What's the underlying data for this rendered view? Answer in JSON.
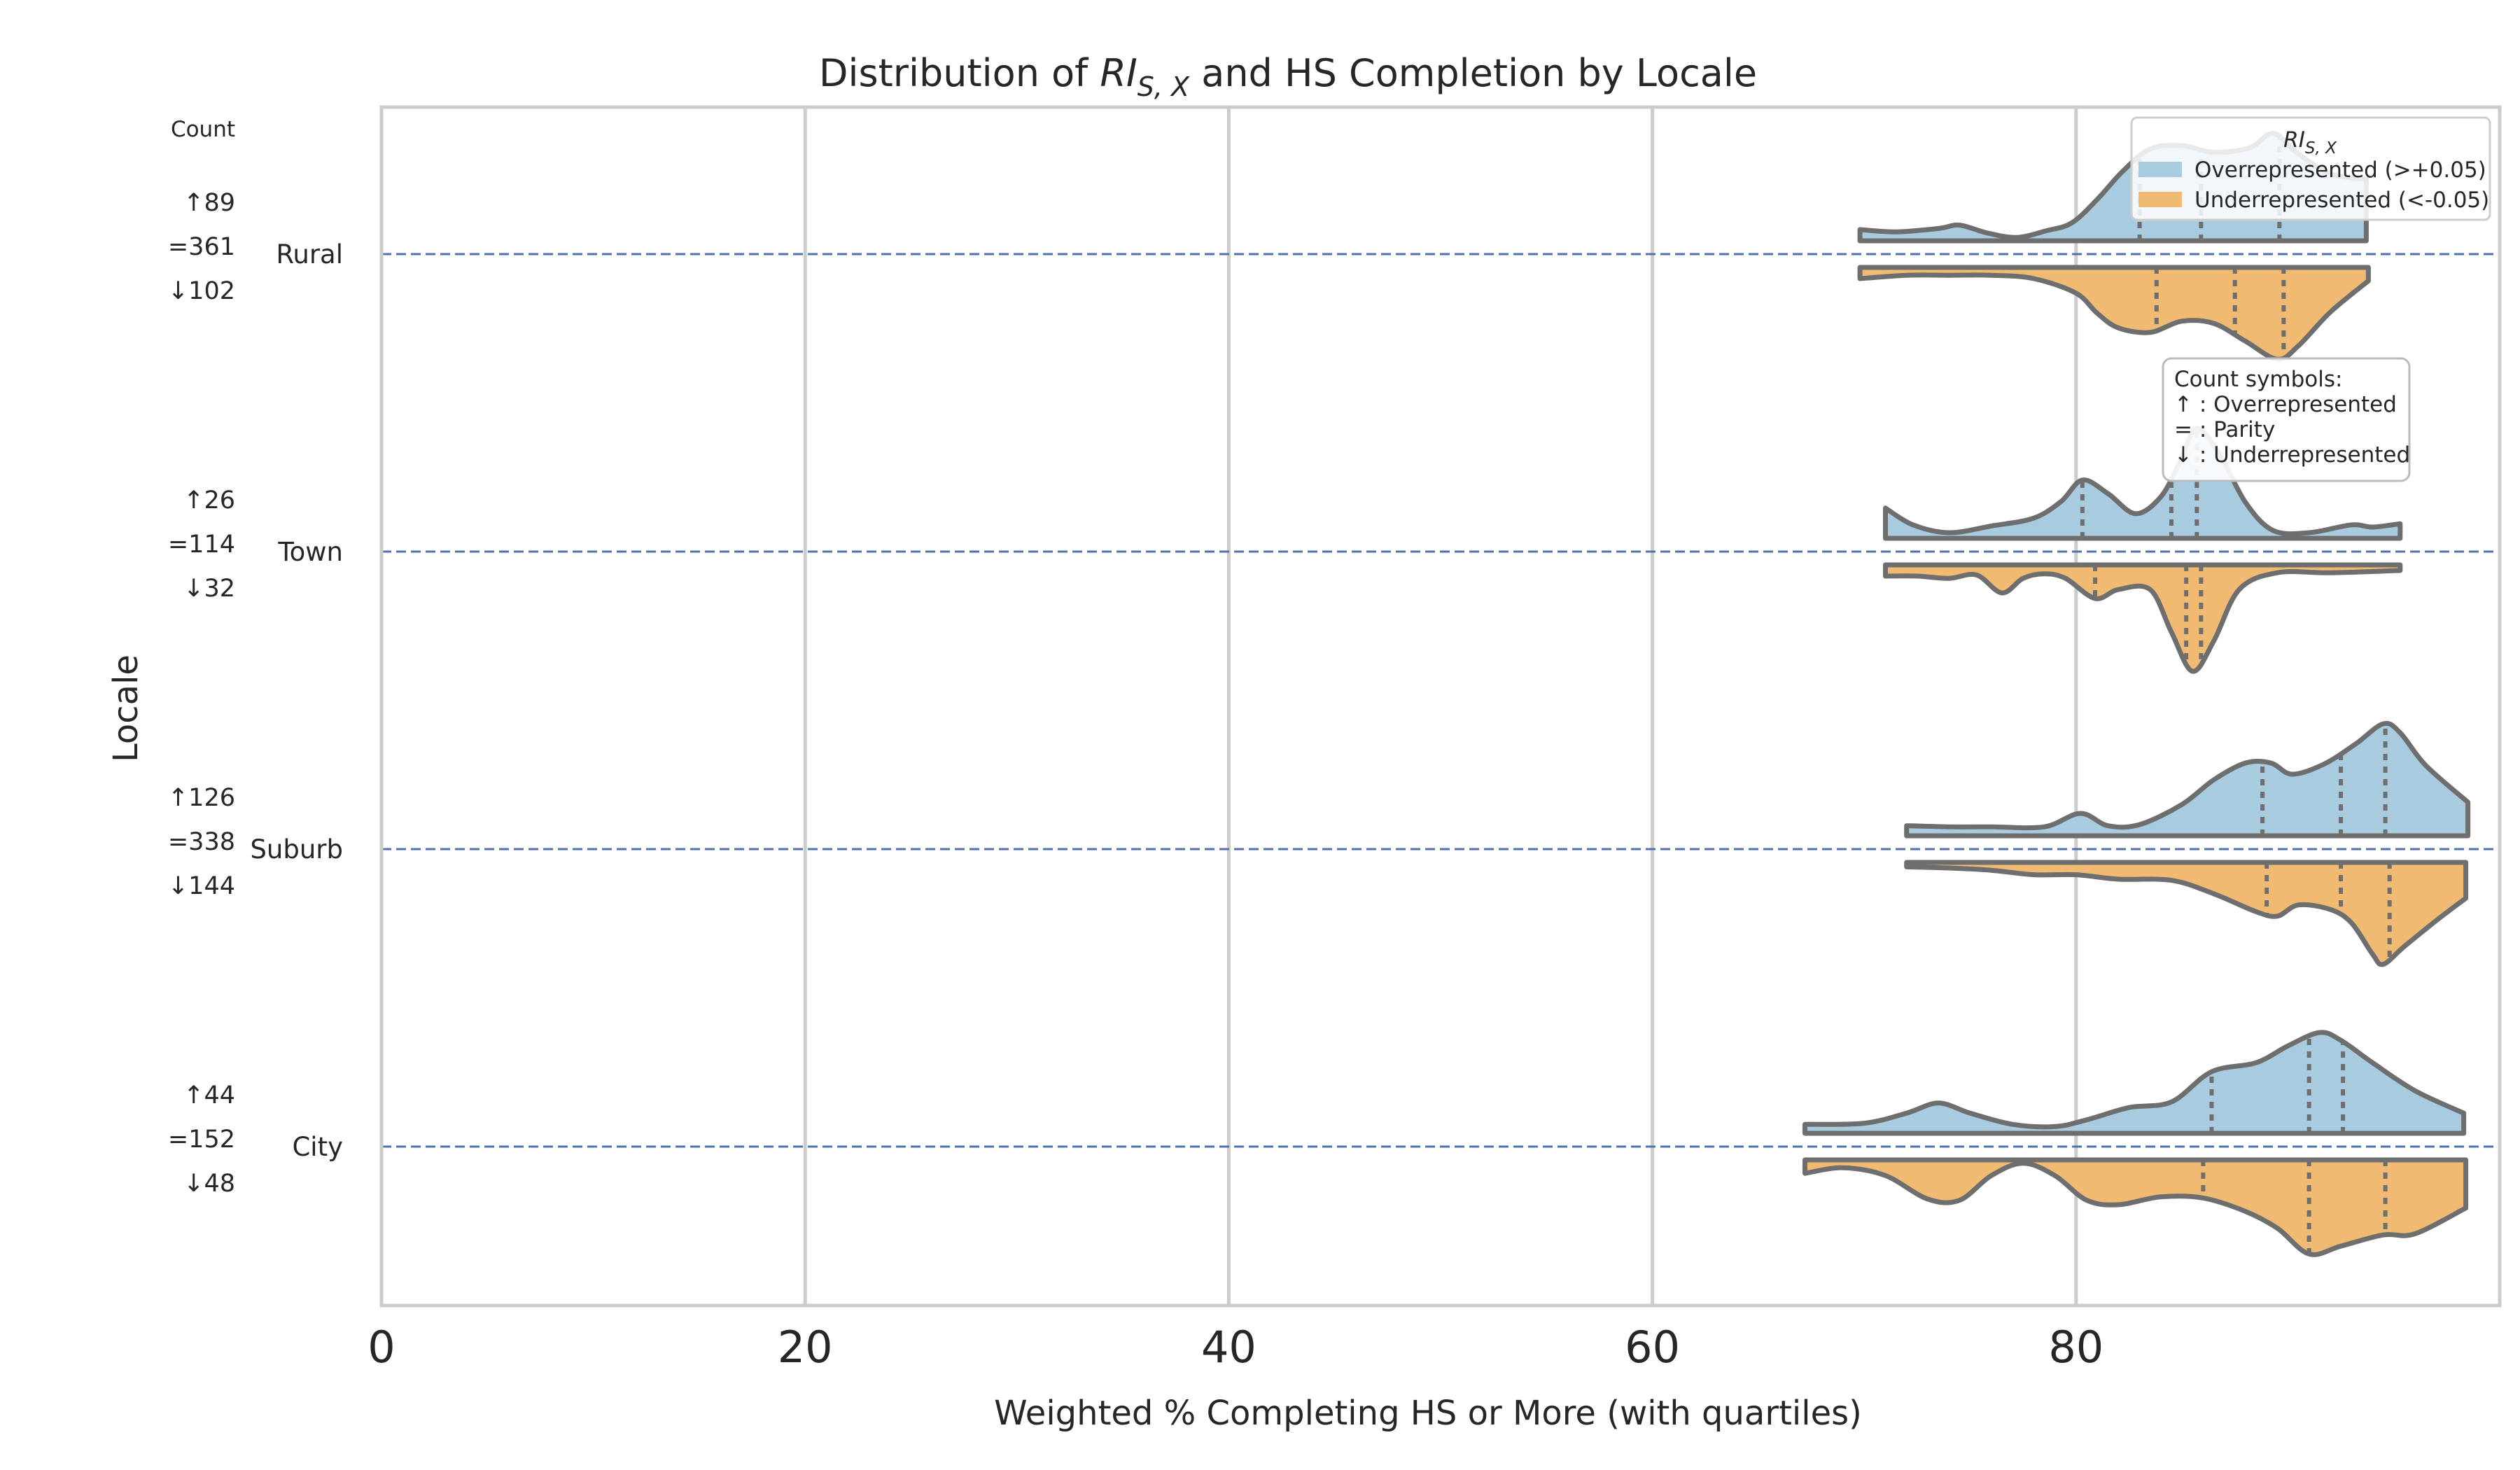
{
  "chart_data": {
    "type": "violin",
    "title_prefix": "Distribution of ",
    "title_math_main": "RI",
    "title_math_sub": "S, X",
    "title_suffix": " and HS Completion by Locale",
    "xlabel": "Weighted % Completing HS or More (with quartiles)",
    "ylabel": "Locale",
    "xlim": [
      0,
      100
    ],
    "xticks": [
      0,
      20,
      40,
      60,
      80
    ],
    "grid": "vertical",
    "count_header": "Count",
    "legend": {
      "placement": "top-right",
      "title_main": "RI",
      "title_sub": "S, X",
      "entries": [
        {
          "name": "Overrepresented (>+0.05)",
          "color": "#a9cbe0"
        },
        {
          "name": "Underrepresented (<-0.05)",
          "color": "#f0ba72"
        }
      ]
    },
    "symbol_box": {
      "lines": [
        "Count symbols:",
        "↑ : Overrepresented",
        "= : Parity",
        "↓ : Underrepresented"
      ]
    },
    "series_colors": {
      "over": "#a9cbe0",
      "under": "#f0ba72",
      "outline": "#6e6e6e",
      "ref_line": "#4c72b0"
    },
    "categories": [
      {
        "name": "Rural",
        "count_over": "↑89",
        "count_parity": "=361",
        "count_under": "↓102",
        "over": {
          "min": 69.8,
          "max": 93.7,
          "q1": 83.0,
          "median": 85.9,
          "q3": 89.6,
          "density": [
            [
              69.8,
              0.1
            ],
            [
              71.5,
              0.08
            ],
            [
              73.5,
              0.11
            ],
            [
              74.5,
              0.14
            ],
            [
              75.8,
              0.07
            ],
            [
              77.2,
              0.03
            ],
            [
              78.6,
              0.09
            ],
            [
              79.8,
              0.16
            ],
            [
              81,
              0.37
            ],
            [
              82.2,
              0.62
            ],
            [
              83.5,
              0.82
            ],
            [
              85,
              0.85
            ],
            [
              86.5,
              0.79
            ],
            [
              88.2,
              0.83
            ],
            [
              89.3,
              0.96
            ],
            [
              90.4,
              0.79
            ],
            [
              92,
              0.6
            ],
            [
              93.7,
              0.55
            ]
          ]
        },
        "under": {
          "min": 69.8,
          "max": 93.8,
          "q1": 83.8,
          "median": 87.5,
          "q3": 89.8,
          "density": [
            [
              69.8,
              0.1
            ],
            [
              72,
              0.07
            ],
            [
              74,
              0.07
            ],
            [
              76,
              0.07
            ],
            [
              78,
              0.1
            ],
            [
              80,
              0.23
            ],
            [
              81,
              0.41
            ],
            [
              82,
              0.54
            ],
            [
              83.5,
              0.58
            ],
            [
              85,
              0.48
            ],
            [
              86.5,
              0.5
            ],
            [
              88,
              0.66
            ],
            [
              89.5,
              0.82
            ],
            [
              90.5,
              0.7
            ],
            [
              92,
              0.4
            ],
            [
              93.8,
              0.12
            ]
          ]
        }
      },
      {
        "name": "Town",
        "count_over": "↑26",
        "count_parity": "=114",
        "count_under": "↓32",
        "over": {
          "min": 71.0,
          "max": 95.3,
          "q1": 80.3,
          "median": 84.5,
          "q3": 85.7,
          "density": [
            [
              71,
              0.27
            ],
            [
              72.3,
              0.12
            ],
            [
              74,
              0.05
            ],
            [
              76,
              0.11
            ],
            [
              78,
              0.18
            ],
            [
              79.3,
              0.33
            ],
            [
              80.3,
              0.52
            ],
            [
              81.5,
              0.4
            ],
            [
              82.8,
              0.22
            ],
            [
              84,
              0.37
            ],
            [
              84.9,
              0.68
            ],
            [
              85.7,
              0.98
            ],
            [
              86.8,
              0.74
            ],
            [
              88,
              0.32
            ],
            [
              89.3,
              0.07
            ],
            [
              91,
              0.05
            ],
            [
              93,
              0.12
            ],
            [
              94,
              0.1
            ],
            [
              95.3,
              0.13
            ]
          ]
        },
        "under": {
          "min": 71.0,
          "max": 95.3,
          "q1": 80.9,
          "median": 85.2,
          "q3": 85.9,
          "density": [
            [
              71,
              0.1
            ],
            [
              72.5,
              0.1
            ],
            [
              74,
              0.12
            ],
            [
              75.3,
              0.09
            ],
            [
              76.5,
              0.25
            ],
            [
              77.5,
              0.12
            ],
            [
              78.5,
              0.08
            ],
            [
              79.5,
              0.12
            ],
            [
              80.9,
              0.3
            ],
            [
              82,
              0.22
            ],
            [
              83.5,
              0.22
            ],
            [
              84.5,
              0.6
            ],
            [
              85.5,
              0.95
            ],
            [
              86.5,
              0.68
            ],
            [
              87.7,
              0.22
            ],
            [
              89.5,
              0.07
            ],
            [
              92,
              0.07
            ],
            [
              95.3,
              0.05
            ]
          ]
        }
      },
      {
        "name": "Suburb",
        "count_over": "↑126",
        "count_parity": "=338",
        "count_under": "↓144",
        "over": {
          "min": 72.0,
          "max": 98.5,
          "q1": 88.8,
          "median": 92.5,
          "q3": 94.6,
          "density": [
            [
              72,
              0.09
            ],
            [
              74,
              0.08
            ],
            [
              76,
              0.08
            ],
            [
              78.5,
              0.08
            ],
            [
              80.2,
              0.2
            ],
            [
              81.5,
              0.09
            ],
            [
              83,
              0.1
            ],
            [
              85,
              0.28
            ],
            [
              86.5,
              0.5
            ],
            [
              88,
              0.65
            ],
            [
              89.2,
              0.65
            ],
            [
              90.2,
              0.55
            ],
            [
              91.7,
              0.64
            ],
            [
              93.2,
              0.82
            ],
            [
              94.5,
              1.0
            ],
            [
              95.3,
              0.92
            ],
            [
              96.5,
              0.63
            ],
            [
              98.5,
              0.3
            ]
          ]
        },
        "under": {
          "min": 72.0,
          "max": 98.4,
          "q1": 89.0,
          "median": 92.5,
          "q3": 94.8,
          "density": [
            [
              72,
              0.04
            ],
            [
              74,
              0.05
            ],
            [
              76,
              0.07
            ],
            [
              78,
              0.11
            ],
            [
              80,
              0.11
            ],
            [
              82,
              0.15
            ],
            [
              84.5,
              0.16
            ],
            [
              86.5,
              0.28
            ],
            [
              88.5,
              0.44
            ],
            [
              89.5,
              0.48
            ],
            [
              90.5,
              0.38
            ],
            [
              92,
              0.42
            ],
            [
              93,
              0.54
            ],
            [
              94,
              0.82
            ],
            [
              94.5,
              0.91
            ],
            [
              95.5,
              0.75
            ],
            [
              97,
              0.52
            ],
            [
              98.4,
              0.32
            ]
          ]
        }
      },
      {
        "name": "City",
        "count_over": "↑44",
        "count_parity": "=152",
        "count_under": "↓48",
        "over": {
          "min": 67.2,
          "max": 98.3,
          "q1": 86.4,
          "median": 91.0,
          "q3": 92.6,
          "density": [
            [
              67.2,
              0.08
            ],
            [
              70,
              0.09
            ],
            [
              72,
              0.18
            ],
            [
              73.5,
              0.27
            ],
            [
              75,
              0.18
            ],
            [
              77,
              0.08
            ],
            [
              79,
              0.06
            ],
            [
              80.5,
              0.12
            ],
            [
              82.5,
              0.23
            ],
            [
              84.5,
              0.28
            ],
            [
              86.4,
              0.55
            ],
            [
              88.5,
              0.63
            ],
            [
              90,
              0.78
            ],
            [
              91.5,
              0.9
            ],
            [
              92.5,
              0.83
            ],
            [
              94,
              0.63
            ],
            [
              96,
              0.38
            ],
            [
              98.3,
              0.18
            ]
          ]
        },
        "under": {
          "min": 67.2,
          "max": 98.4,
          "q1": 86.0,
          "median": 91.0,
          "q3": 94.6,
          "density": [
            [
              67.2,
              0.12
            ],
            [
              69,
              0.07
            ],
            [
              71,
              0.14
            ],
            [
              73,
              0.35
            ],
            [
              74.5,
              0.36
            ],
            [
              76,
              0.14
            ],
            [
              77.5,
              0.03
            ],
            [
              79,
              0.14
            ],
            [
              80.5,
              0.36
            ],
            [
              82,
              0.4
            ],
            [
              84,
              0.33
            ],
            [
              86,
              0.34
            ],
            [
              88,
              0.46
            ],
            [
              89.5,
              0.61
            ],
            [
              91,
              0.84
            ],
            [
              92.5,
              0.77
            ],
            [
              94.5,
              0.67
            ],
            [
              96,
              0.66
            ],
            [
              98.4,
              0.43
            ]
          ]
        }
      }
    ]
  }
}
